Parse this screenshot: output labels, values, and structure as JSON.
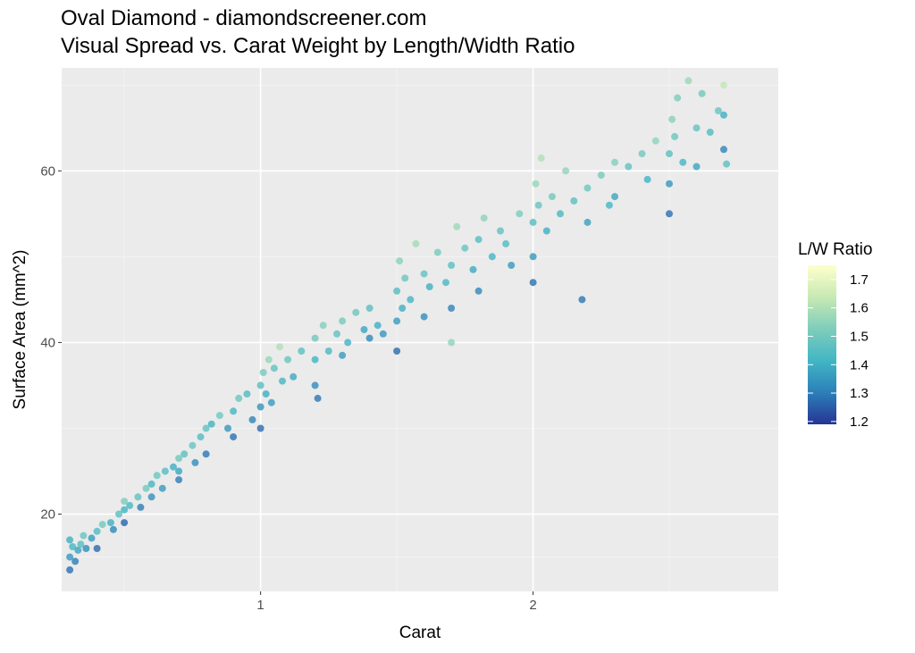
{
  "chart_data": {
    "type": "scatter",
    "title": "Oval Diamond - diamondscreener.com",
    "subtitle": "Visual Spread vs. Carat Weight by Length/Width Ratio",
    "xlabel": "Carat",
    "ylabel": "Surface Area (mm^2)",
    "xlim": [
      0.27,
      2.9
    ],
    "ylim": [
      11,
      72
    ],
    "x_ticks": [
      1,
      2
    ],
    "x_tick_labels": [
      "1",
      "2"
    ],
    "y_ticks": [
      20,
      40,
      60
    ],
    "y_tick_labels": [
      "20",
      "40",
      "60"
    ],
    "grid": true,
    "legend": {
      "title": "L/W Ratio",
      "placement": "right",
      "type": "colorbar",
      "min": 1.19,
      "max": 1.75,
      "ticks": [
        1.2,
        1.3,
        1.4,
        1.5,
        1.6,
        1.7
      ],
      "tick_labels": [
        "1.2",
        "1.3",
        "1.4",
        "1.5",
        "1.6",
        "1.7"
      ],
      "colors": [
        "#253494",
        "#2c7fb8",
        "#41b6c4",
        "#7fcdbb",
        "#c7e9b4",
        "#ffffcc"
      ]
    },
    "points": [
      {
        "x": 0.3,
        "y": 13.5,
        "lw": 1.28
      },
      {
        "x": 0.3,
        "y": 15.0,
        "lw": 1.35
      },
      {
        "x": 0.31,
        "y": 16.2,
        "lw": 1.42
      },
      {
        "x": 0.3,
        "y": 17.0,
        "lw": 1.4
      },
      {
        "x": 0.32,
        "y": 14.5,
        "lw": 1.3
      },
      {
        "x": 0.33,
        "y": 15.8,
        "lw": 1.38
      },
      {
        "x": 0.34,
        "y": 16.5,
        "lw": 1.45
      },
      {
        "x": 0.35,
        "y": 17.5,
        "lw": 1.48
      },
      {
        "x": 0.36,
        "y": 16.0,
        "lw": 1.33
      },
      {
        "x": 0.38,
        "y": 17.2,
        "lw": 1.36
      },
      {
        "x": 0.4,
        "y": 18.0,
        "lw": 1.44
      },
      {
        "x": 0.4,
        "y": 16.0,
        "lw": 1.27
      },
      {
        "x": 0.42,
        "y": 18.8,
        "lw": 1.5
      },
      {
        "x": 0.45,
        "y": 19.0,
        "lw": 1.4
      },
      {
        "x": 0.46,
        "y": 18.2,
        "lw": 1.32
      },
      {
        "x": 0.48,
        "y": 20.0,
        "lw": 1.46
      },
      {
        "x": 0.5,
        "y": 20.5,
        "lw": 1.41
      },
      {
        "x": 0.5,
        "y": 19.0,
        "lw": 1.26
      },
      {
        "x": 0.5,
        "y": 21.5,
        "lw": 1.52
      },
      {
        "x": 0.52,
        "y": 21.0,
        "lw": 1.43
      },
      {
        "x": 0.55,
        "y": 22.0,
        "lw": 1.47
      },
      {
        "x": 0.56,
        "y": 20.8,
        "lw": 1.3
      },
      {
        "x": 0.58,
        "y": 23.0,
        "lw": 1.5
      },
      {
        "x": 0.6,
        "y": 23.5,
        "lw": 1.42
      },
      {
        "x": 0.6,
        "y": 22.0,
        "lw": 1.34
      },
      {
        "x": 0.62,
        "y": 24.5,
        "lw": 1.49
      },
      {
        "x": 0.64,
        "y": 23.0,
        "lw": 1.36
      },
      {
        "x": 0.65,
        "y": 25.0,
        "lw": 1.45
      },
      {
        "x": 0.68,
        "y": 25.5,
        "lw": 1.4
      },
      {
        "x": 0.7,
        "y": 26.5,
        "lw": 1.5
      },
      {
        "x": 0.7,
        "y": 24.0,
        "lw": 1.3
      },
      {
        "x": 0.7,
        "y": 25.0,
        "lw": 1.38
      },
      {
        "x": 0.72,
        "y": 27.0,
        "lw": 1.46
      },
      {
        "x": 0.75,
        "y": 28.0,
        "lw": 1.48
      },
      {
        "x": 0.76,
        "y": 26.0,
        "lw": 1.33
      },
      {
        "x": 0.78,
        "y": 29.0,
        "lw": 1.44
      },
      {
        "x": 0.8,
        "y": 30.0,
        "lw": 1.47
      },
      {
        "x": 0.8,
        "y": 27.0,
        "lw": 1.29
      },
      {
        "x": 0.82,
        "y": 30.5,
        "lw": 1.41
      },
      {
        "x": 0.85,
        "y": 31.5,
        "lw": 1.5
      },
      {
        "x": 0.88,
        "y": 30.0,
        "lw": 1.35
      },
      {
        "x": 0.9,
        "y": 32.0,
        "lw": 1.42
      },
      {
        "x": 0.9,
        "y": 29.0,
        "lw": 1.28
      },
      {
        "x": 0.92,
        "y": 33.5,
        "lw": 1.49
      },
      {
        "x": 0.95,
        "y": 34.0,
        "lw": 1.44
      },
      {
        "x": 0.97,
        "y": 31.0,
        "lw": 1.31
      },
      {
        "x": 1.0,
        "y": 35.0,
        "lw": 1.45
      },
      {
        "x": 1.0,
        "y": 32.5,
        "lw": 1.34
      },
      {
        "x": 1.0,
        "y": 30.0,
        "lw": 1.27
      },
      {
        "x": 1.01,
        "y": 36.5,
        "lw": 1.51
      },
      {
        "x": 1.02,
        "y": 34.0,
        "lw": 1.4
      },
      {
        "x": 1.03,
        "y": 38.0,
        "lw": 1.56
      },
      {
        "x": 1.04,
        "y": 33.0,
        "lw": 1.36
      },
      {
        "x": 1.05,
        "y": 37.0,
        "lw": 1.47
      },
      {
        "x": 1.07,
        "y": 39.5,
        "lw": 1.6
      },
      {
        "x": 1.08,
        "y": 35.5,
        "lw": 1.42
      },
      {
        "x": 1.1,
        "y": 38.0,
        "lw": 1.48
      },
      {
        "x": 1.12,
        "y": 36.0,
        "lw": 1.39
      },
      {
        "x": 1.15,
        "y": 39.0,
        "lw": 1.46
      },
      {
        "x": 1.2,
        "y": 38.0,
        "lw": 1.41
      },
      {
        "x": 1.2,
        "y": 35.0,
        "lw": 1.33
      },
      {
        "x": 1.2,
        "y": 40.5,
        "lw": 1.5
      },
      {
        "x": 1.21,
        "y": 33.5,
        "lw": 1.29
      },
      {
        "x": 1.23,
        "y": 42.0,
        "lw": 1.53
      },
      {
        "x": 1.25,
        "y": 39.0,
        "lw": 1.43
      },
      {
        "x": 1.28,
        "y": 41.0,
        "lw": 1.47
      },
      {
        "x": 1.3,
        "y": 42.5,
        "lw": 1.51
      },
      {
        "x": 1.3,
        "y": 38.5,
        "lw": 1.36
      },
      {
        "x": 1.32,
        "y": 40.0,
        "lw": 1.41
      },
      {
        "x": 1.35,
        "y": 43.5,
        "lw": 1.49
      },
      {
        "x": 1.38,
        "y": 41.5,
        "lw": 1.38
      },
      {
        "x": 1.4,
        "y": 44.0,
        "lw": 1.46
      },
      {
        "x": 1.4,
        "y": 40.5,
        "lw": 1.32
      },
      {
        "x": 1.43,
        "y": 42.0,
        "lw": 1.4
      },
      {
        "x": 1.45,
        "y": 41.0,
        "lw": 1.35
      },
      {
        "x": 1.5,
        "y": 46.0,
        "lw": 1.45
      },
      {
        "x": 1.5,
        "y": 42.5,
        "lw": 1.36
      },
      {
        "x": 1.5,
        "y": 39.0,
        "lw": 1.27
      },
      {
        "x": 1.51,
        "y": 49.5,
        "lw": 1.54
      },
      {
        "x": 1.52,
        "y": 44.0,
        "lw": 1.4
      },
      {
        "x": 1.53,
        "y": 47.5,
        "lw": 1.49
      },
      {
        "x": 1.55,
        "y": 45.0,
        "lw": 1.42
      },
      {
        "x": 1.57,
        "y": 51.5,
        "lw": 1.58
      },
      {
        "x": 1.6,
        "y": 48.0,
        "lw": 1.47
      },
      {
        "x": 1.6,
        "y": 43.0,
        "lw": 1.33
      },
      {
        "x": 1.62,
        "y": 46.5,
        "lw": 1.4
      },
      {
        "x": 1.65,
        "y": 50.5,
        "lw": 1.51
      },
      {
        "x": 1.68,
        "y": 47.0,
        "lw": 1.43
      },
      {
        "x": 1.7,
        "y": 49.0,
        "lw": 1.46
      },
      {
        "x": 1.7,
        "y": 44.0,
        "lw": 1.31
      },
      {
        "x": 1.7,
        "y": 40.0,
        "lw": 1.55
      },
      {
        "x": 1.72,
        "y": 53.5,
        "lw": 1.57
      },
      {
        "x": 1.75,
        "y": 51.0,
        "lw": 1.48
      },
      {
        "x": 1.78,
        "y": 48.5,
        "lw": 1.39
      },
      {
        "x": 1.8,
        "y": 52.0,
        "lw": 1.45
      },
      {
        "x": 1.8,
        "y": 46.0,
        "lw": 1.32
      },
      {
        "x": 1.82,
        "y": 54.5,
        "lw": 1.55
      },
      {
        "x": 1.85,
        "y": 50.0,
        "lw": 1.42
      },
      {
        "x": 1.88,
        "y": 53.0,
        "lw": 1.47
      },
      {
        "x": 1.9,
        "y": 51.5,
        "lw": 1.44
      },
      {
        "x": 1.92,
        "y": 49.0,
        "lw": 1.36
      },
      {
        "x": 1.95,
        "y": 55.0,
        "lw": 1.52
      },
      {
        "x": 2.0,
        "y": 54.0,
        "lw": 1.45
      },
      {
        "x": 2.0,
        "y": 50.0,
        "lw": 1.35
      },
      {
        "x": 2.0,
        "y": 47.0,
        "lw": 1.28
      },
      {
        "x": 2.01,
        "y": 58.5,
        "lw": 1.56
      },
      {
        "x": 2.02,
        "y": 56.0,
        "lw": 1.48
      },
      {
        "x": 2.03,
        "y": 61.5,
        "lw": 1.6
      },
      {
        "x": 2.05,
        "y": 53.0,
        "lw": 1.4
      },
      {
        "x": 2.07,
        "y": 57.0,
        "lw": 1.5
      },
      {
        "x": 2.1,
        "y": 55.0,
        "lw": 1.43
      },
      {
        "x": 2.12,
        "y": 60.0,
        "lw": 1.55
      },
      {
        "x": 2.15,
        "y": 56.5,
        "lw": 1.46
      },
      {
        "x": 2.18,
        "y": 45.0,
        "lw": 1.29
      },
      {
        "x": 2.2,
        "y": 58.0,
        "lw": 1.49
      },
      {
        "x": 2.2,
        "y": 54.0,
        "lw": 1.37
      },
      {
        "x": 2.25,
        "y": 59.5,
        "lw": 1.51
      },
      {
        "x": 2.28,
        "y": 56.0,
        "lw": 1.42
      },
      {
        "x": 2.3,
        "y": 61.0,
        "lw": 1.53
      },
      {
        "x": 2.3,
        "y": 57.0,
        "lw": 1.38
      },
      {
        "x": 2.35,
        "y": 60.5,
        "lw": 1.47
      },
      {
        "x": 2.4,
        "y": 62.0,
        "lw": 1.5
      },
      {
        "x": 2.42,
        "y": 59.0,
        "lw": 1.41
      },
      {
        "x": 2.45,
        "y": 63.5,
        "lw": 1.55
      },
      {
        "x": 2.5,
        "y": 62.0,
        "lw": 1.46
      },
      {
        "x": 2.5,
        "y": 58.5,
        "lw": 1.35
      },
      {
        "x": 2.5,
        "y": 55.0,
        "lw": 1.28
      },
      {
        "x": 2.51,
        "y": 66.0,
        "lw": 1.54
      },
      {
        "x": 2.52,
        "y": 64.0,
        "lw": 1.49
      },
      {
        "x": 2.53,
        "y": 68.5,
        "lw": 1.52
      },
      {
        "x": 2.55,
        "y": 61.0,
        "lw": 1.42
      },
      {
        "x": 2.57,
        "y": 70.5,
        "lw": 1.57
      },
      {
        "x": 2.6,
        "y": 65.0,
        "lw": 1.47
      },
      {
        "x": 2.6,
        "y": 60.5,
        "lw": 1.38
      },
      {
        "x": 2.62,
        "y": 69.0,
        "lw": 1.5
      },
      {
        "x": 2.65,
        "y": 64.5,
        "lw": 1.44
      },
      {
        "x": 2.68,
        "y": 67.0,
        "lw": 1.48
      },
      {
        "x": 2.7,
        "y": 70.0,
        "lw": 1.63
      },
      {
        "x": 2.7,
        "y": 66.5,
        "lw": 1.4
      },
      {
        "x": 2.7,
        "y": 62.5,
        "lw": 1.31
      },
      {
        "x": 2.71,
        "y": 60.8,
        "lw": 1.46
      }
    ]
  }
}
